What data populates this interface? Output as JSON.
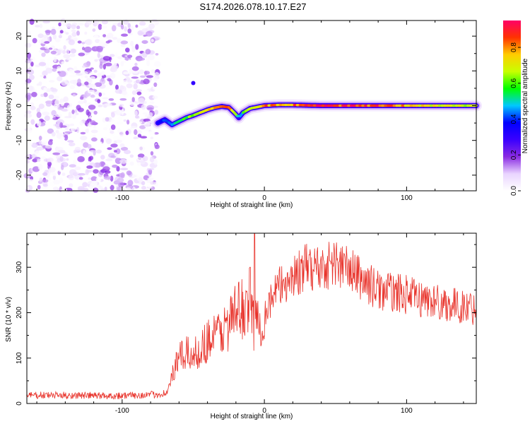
{
  "title": "S174.2026.078.10.17.E27",
  "chart_data": [
    {
      "type": "heatmap",
      "name": "spectrogram",
      "xlabel": "Height of straight line (km)",
      "ylabel": "Frequency (Hz)",
      "xlim": [
        -167,
        149
      ],
      "ylim": [
        -24.5,
        24.5
      ],
      "xticks": [
        -100,
        0,
        100
      ],
      "yticks": [
        20,
        10,
        0,
        -10,
        -20
      ],
      "colorbar": {
        "label": "Normalized spectral amplitude",
        "range": [
          0,
          0.95
        ],
        "ticks": [
          "0.0",
          "0.2",
          "0.4",
          "0.6",
          "0.8"
        ],
        "colormap": [
          "#ffffff",
          "#e9d4ff",
          "#8a2be2",
          "#3a00ff",
          "#0000ff",
          "#00c8ff",
          "#00ff00",
          "#c8ff00",
          "#ffcc00",
          "#ff3300",
          "#ff0066"
        ]
      },
      "noise_region": {
        "x_from": -167,
        "x_to": -75,
        "freq_from": -24.5,
        "freq_to": 24.5,
        "amplitude_max": 0.2
      },
      "ridge": {
        "x": [
          -75,
          -70,
          -65,
          -60,
          -55,
          -50,
          -45,
          -40,
          -35,
          -30,
          -25,
          -20,
          -18,
          -15,
          -10,
          -5,
          0,
          10,
          20,
          40,
          60,
          80,
          100,
          120,
          140,
          149
        ],
        "freq": [
          -5,
          -4,
          -5.5,
          -4.5,
          -3.5,
          -2.8,
          -2,
          -1.2,
          -0.6,
          -0.2,
          -0.5,
          -2.5,
          -3.5,
          -2,
          -0.8,
          -0.4,
          0,
          0.2,
          0.2,
          0,
          0,
          0,
          0,
          0,
          0,
          0
        ],
        "amplitude": [
          0.4,
          0.45,
          0.5,
          0.55,
          0.6,
          0.7,
          0.75,
          0.8,
          0.85,
          0.9,
          0.8,
          0.6,
          0.5,
          0.6,
          0.7,
          0.8,
          0.85,
          0.8,
          0.85,
          0.92,
          0.9,
          0.88,
          0.8,
          0.75,
          0.7,
          0.7
        ]
      },
      "outlier": {
        "x": -50,
        "freq": 6.5,
        "amplitude": 0.3
      }
    },
    {
      "type": "line",
      "name": "snr",
      "xlabel": "Height of straight line (km)",
      "ylabel": "SNR (10 * v/v)",
      "xlim": [
        -167,
        149
      ],
      "ylim": [
        0,
        375
      ],
      "xticks": [
        -100,
        0,
        100
      ],
      "yticks": [
        0,
        100,
        200,
        300
      ],
      "color": "#e8322a",
      "x": [
        -167,
        -150,
        -130,
        -110,
        -90,
        -75,
        -68,
        -65,
        -60,
        -55,
        -50,
        -45,
        -40,
        -35,
        -30,
        -25,
        -20,
        -15,
        -12,
        -10,
        -8,
        -5,
        0,
        5,
        10,
        20,
        30,
        40,
        50,
        60,
        70,
        80,
        90,
        100,
        110,
        120,
        130,
        140,
        149
      ],
      "values": [
        18,
        18,
        18,
        17,
        18,
        20,
        25,
        60,
        100,
        110,
        105,
        120,
        140,
        150,
        160,
        175,
        200,
        210,
        220,
        250,
        180,
        170,
        200,
        230,
        255,
        280,
        300,
        300,
        310,
        295,
        270,
        250,
        245,
        240,
        230,
        225,
        218,
        212,
        210
      ],
      "spikes": [
        {
          "x": -7,
          "y": 375
        },
        {
          "x": -10,
          "y": 300
        }
      ]
    }
  ]
}
